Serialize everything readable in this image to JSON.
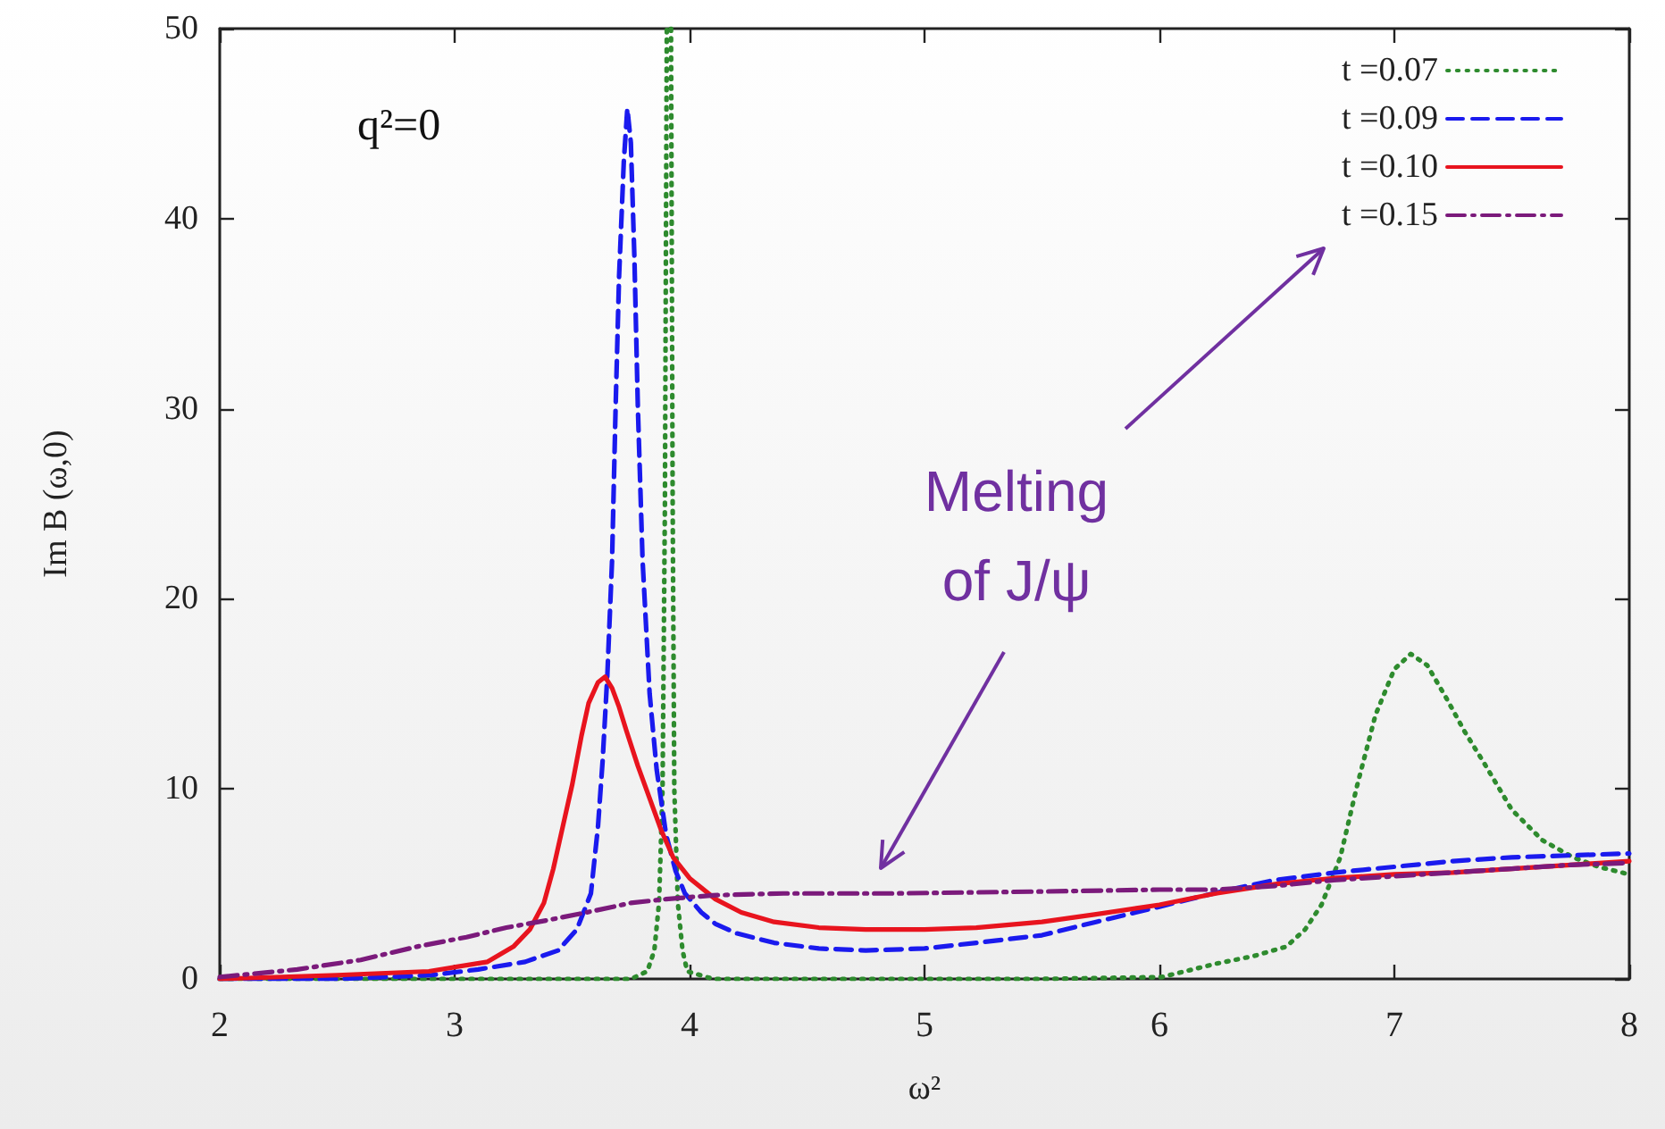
{
  "chart_data": {
    "type": "line",
    "xlabel": "ω²",
    "ylabel": "Im B (ω,0)",
    "xlim": [
      2,
      8
    ],
    "ylim": [
      0,
      50
    ],
    "xticks": [
      2,
      3,
      4,
      5,
      6,
      7,
      8
    ],
    "yticks": [
      0,
      10,
      20,
      30,
      40,
      50
    ],
    "grid": false,
    "legend": "top right",
    "marker": "none",
    "annotations": [
      "q²=0",
      "Melting of J/ψ"
    ],
    "series": [
      {
        "name": "t =0.07",
        "color": "#2e8b2e",
        "line_style": "dotted",
        "x": [
          2,
          3,
          3.5,
          3.75,
          3.82,
          3.85,
          3.87,
          3.885,
          3.895,
          3.903,
          3.912,
          3.921,
          3.928,
          3.935,
          3.95,
          3.97,
          3.99,
          4.1,
          5,
          5.5,
          6.01,
          6.24,
          6.4,
          6.54,
          6.62,
          6.69,
          6.77,
          6.84,
          6.92,
          7,
          7.07,
          7.14,
          7.22,
          7.3,
          7.38,
          7.5,
          7.63,
          7.76,
          7.87,
          8
        ],
        "values": [
          0,
          0,
          0,
          0,
          0.4,
          1.5,
          4,
          10,
          25,
          50,
          null,
          50,
          25,
          10,
          4,
          1.5,
          0.4,
          0,
          0,
          0,
          0.1,
          0.8,
          1.2,
          1.7,
          2.6,
          3.9,
          6.4,
          10.1,
          13.9,
          16.3,
          17.1,
          16.5,
          14.8,
          13,
          11.4,
          8.9,
          7.3,
          6.4,
          5.9,
          5.5
        ]
      },
      {
        "name": "t =0.09",
        "color": "#1a1aee",
        "line_style": "dashed",
        "x": [
          2,
          2.5,
          2.9,
          3.1,
          3.3,
          3.44,
          3.52,
          3.58,
          3.61,
          3.63,
          3.65,
          3.67,
          3.685,
          3.7,
          3.72,
          3.735,
          3.75,
          3.765,
          3.78,
          3.8,
          3.83,
          3.86,
          3.9,
          3.94,
          3.98,
          4.05,
          4.11,
          4.2,
          4.36,
          4.55,
          4.75,
          5,
          5.22,
          5.5,
          5.73,
          6,
          6.13,
          6.3,
          6.49,
          6.75,
          7,
          7.25,
          7.5,
          7.75,
          8
        ],
        "values": [
          0,
          0,
          0.2,
          0.5,
          0.9,
          1.5,
          2.6,
          4.5,
          8,
          11.5,
          16,
          22,
          30,
          37,
          43,
          45.8,
          44,
          38,
          30,
          22,
          15,
          11,
          7.6,
          5.7,
          4.5,
          3.5,
          2.9,
          2.4,
          1.9,
          1.6,
          1.5,
          1.6,
          1.9,
          2.3,
          3,
          3.8,
          4.2,
          4.7,
          5.2,
          5.6,
          5.9,
          6.2,
          6.4,
          6.5,
          6.6
        ]
      },
      {
        "name": "t =0.10",
        "color": "#e8141e",
        "line_style": "solid",
        "x": [
          2,
          2.5,
          2.89,
          3.14,
          3.25,
          3.32,
          3.38,
          3.42,
          3.46,
          3.5,
          3.54,
          3.57,
          3.61,
          3.64,
          3.67,
          3.7,
          3.73,
          3.78,
          3.83,
          3.88,
          3.93,
          4,
          4.11,
          4.22,
          4.36,
          4.55,
          4.75,
          5,
          5.22,
          5.5,
          5.73,
          6,
          6.24,
          6.5,
          6.74,
          7,
          7.25,
          7.5,
          7.75,
          8
        ],
        "values": [
          0,
          0.2,
          0.4,
          0.9,
          1.7,
          2.6,
          4,
          5.8,
          8,
          10.2,
          12.8,
          14.5,
          15.6,
          15.9,
          15.3,
          14.3,
          13.1,
          11.2,
          9.5,
          7.8,
          6.4,
          5.3,
          4.2,
          3.5,
          3,
          2.7,
          2.6,
          2.6,
          2.7,
          3,
          3.4,
          3.9,
          4.5,
          5,
          5.3,
          5.5,
          5.6,
          5.8,
          6,
          6.2
        ]
      },
      {
        "name": "t =0.15",
        "color": "#7b1a7b",
        "line_style": "dashdot",
        "x": [
          2,
          2.33,
          2.6,
          2.84,
          3.05,
          3.22,
          3.4,
          3.6,
          3.75,
          3.9,
          4.1,
          4.4,
          4.87,
          5.5,
          6,
          6.24,
          6.5,
          6.74,
          7,
          7.25,
          7.5,
          7.75,
          8
        ],
        "values": [
          0.1,
          0.5,
          1,
          1.7,
          2.2,
          2.7,
          3.1,
          3.6,
          4,
          4.2,
          4.4,
          4.5,
          4.5,
          4.6,
          4.7,
          4.7,
          4.9,
          5.2,
          5.4,
          5.6,
          5.8,
          6,
          6.1
        ]
      }
    ]
  }
}
